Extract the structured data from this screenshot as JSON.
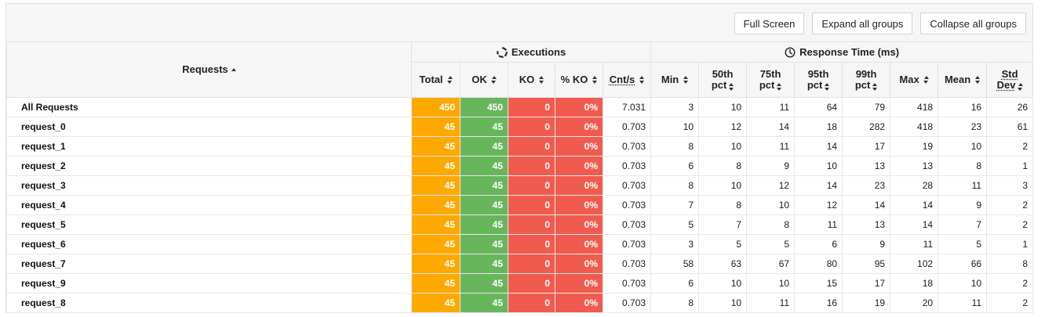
{
  "toolbar": {
    "full_screen": "Full Screen",
    "expand_all": "Expand all groups",
    "collapse_all": "Collapse all groups"
  },
  "header": {
    "requests": "Requests",
    "executions": "Executions",
    "response_time": "Response Time (ms)",
    "columns": {
      "total": "Total",
      "ok": "OK",
      "ko": "KO",
      "pko": "% KO",
      "cnts": "Cnt/s",
      "min": "Min",
      "p50_a": "50th",
      "p50_b": "pct",
      "p75_a": "75th",
      "p75_b": "pct",
      "p95_a": "95th",
      "p95_b": "pct",
      "p99_a": "99th",
      "p99_b": "pct",
      "max": "Max",
      "mean": "Mean",
      "std_a": "Std",
      "std_b": "Dev"
    }
  },
  "colors": {
    "total": "#ffa900",
    "ok": "#68b65c",
    "ko": "#f15b4f"
  },
  "rows": [
    {
      "name": "All Requests",
      "total": "450",
      "ok": "450",
      "ko": "0",
      "pko": "0%",
      "cnts": "7.031",
      "min": "3",
      "p50": "10",
      "p75": "11",
      "p95": "64",
      "p99": "79",
      "max": "418",
      "mean": "16",
      "std": "26"
    },
    {
      "name": "request_0",
      "total": "45",
      "ok": "45",
      "ko": "0",
      "pko": "0%",
      "cnts": "0.703",
      "min": "10",
      "p50": "12",
      "p75": "14",
      "p95": "18",
      "p99": "282",
      "max": "418",
      "mean": "23",
      "std": "61"
    },
    {
      "name": "request_1",
      "total": "45",
      "ok": "45",
      "ko": "0",
      "pko": "0%",
      "cnts": "0.703",
      "min": "8",
      "p50": "10",
      "p75": "11",
      "p95": "14",
      "p99": "17",
      "max": "19",
      "mean": "10",
      "std": "2"
    },
    {
      "name": "request_2",
      "total": "45",
      "ok": "45",
      "ko": "0",
      "pko": "0%",
      "cnts": "0.703",
      "min": "6",
      "p50": "8",
      "p75": "9",
      "p95": "10",
      "p99": "13",
      "max": "13",
      "mean": "8",
      "std": "1"
    },
    {
      "name": "request_3",
      "total": "45",
      "ok": "45",
      "ko": "0",
      "pko": "0%",
      "cnts": "0.703",
      "min": "8",
      "p50": "10",
      "p75": "12",
      "p95": "14",
      "p99": "23",
      "max": "28",
      "mean": "11",
      "std": "3"
    },
    {
      "name": "request_4",
      "total": "45",
      "ok": "45",
      "ko": "0",
      "pko": "0%",
      "cnts": "0.703",
      "min": "7",
      "p50": "8",
      "p75": "10",
      "p95": "12",
      "p99": "14",
      "max": "14",
      "mean": "9",
      "std": "2"
    },
    {
      "name": "request_5",
      "total": "45",
      "ok": "45",
      "ko": "0",
      "pko": "0%",
      "cnts": "0.703",
      "min": "5",
      "p50": "7",
      "p75": "8",
      "p95": "11",
      "p99": "13",
      "max": "14",
      "mean": "7",
      "std": "2"
    },
    {
      "name": "request_6",
      "total": "45",
      "ok": "45",
      "ko": "0",
      "pko": "0%",
      "cnts": "0.703",
      "min": "3",
      "p50": "5",
      "p75": "5",
      "p95": "6",
      "p99": "9",
      "max": "11",
      "mean": "5",
      "std": "1"
    },
    {
      "name": "request_7",
      "total": "45",
      "ok": "45",
      "ko": "0",
      "pko": "0%",
      "cnts": "0.703",
      "min": "58",
      "p50": "63",
      "p75": "67",
      "p95": "80",
      "p99": "95",
      "max": "102",
      "mean": "66",
      "std": "8"
    },
    {
      "name": "request_9",
      "total": "45",
      "ok": "45",
      "ko": "0",
      "pko": "0%",
      "cnts": "0.703",
      "min": "6",
      "p50": "10",
      "p75": "10",
      "p95": "15",
      "p99": "17",
      "max": "18",
      "mean": "10",
      "std": "2"
    },
    {
      "name": "request_8",
      "total": "45",
      "ok": "45",
      "ko": "0",
      "pko": "0%",
      "cnts": "0.703",
      "min": "8",
      "p50": "10",
      "p75": "11",
      "p95": "16",
      "p99": "19",
      "max": "20",
      "mean": "11",
      "std": "2"
    }
  ]
}
